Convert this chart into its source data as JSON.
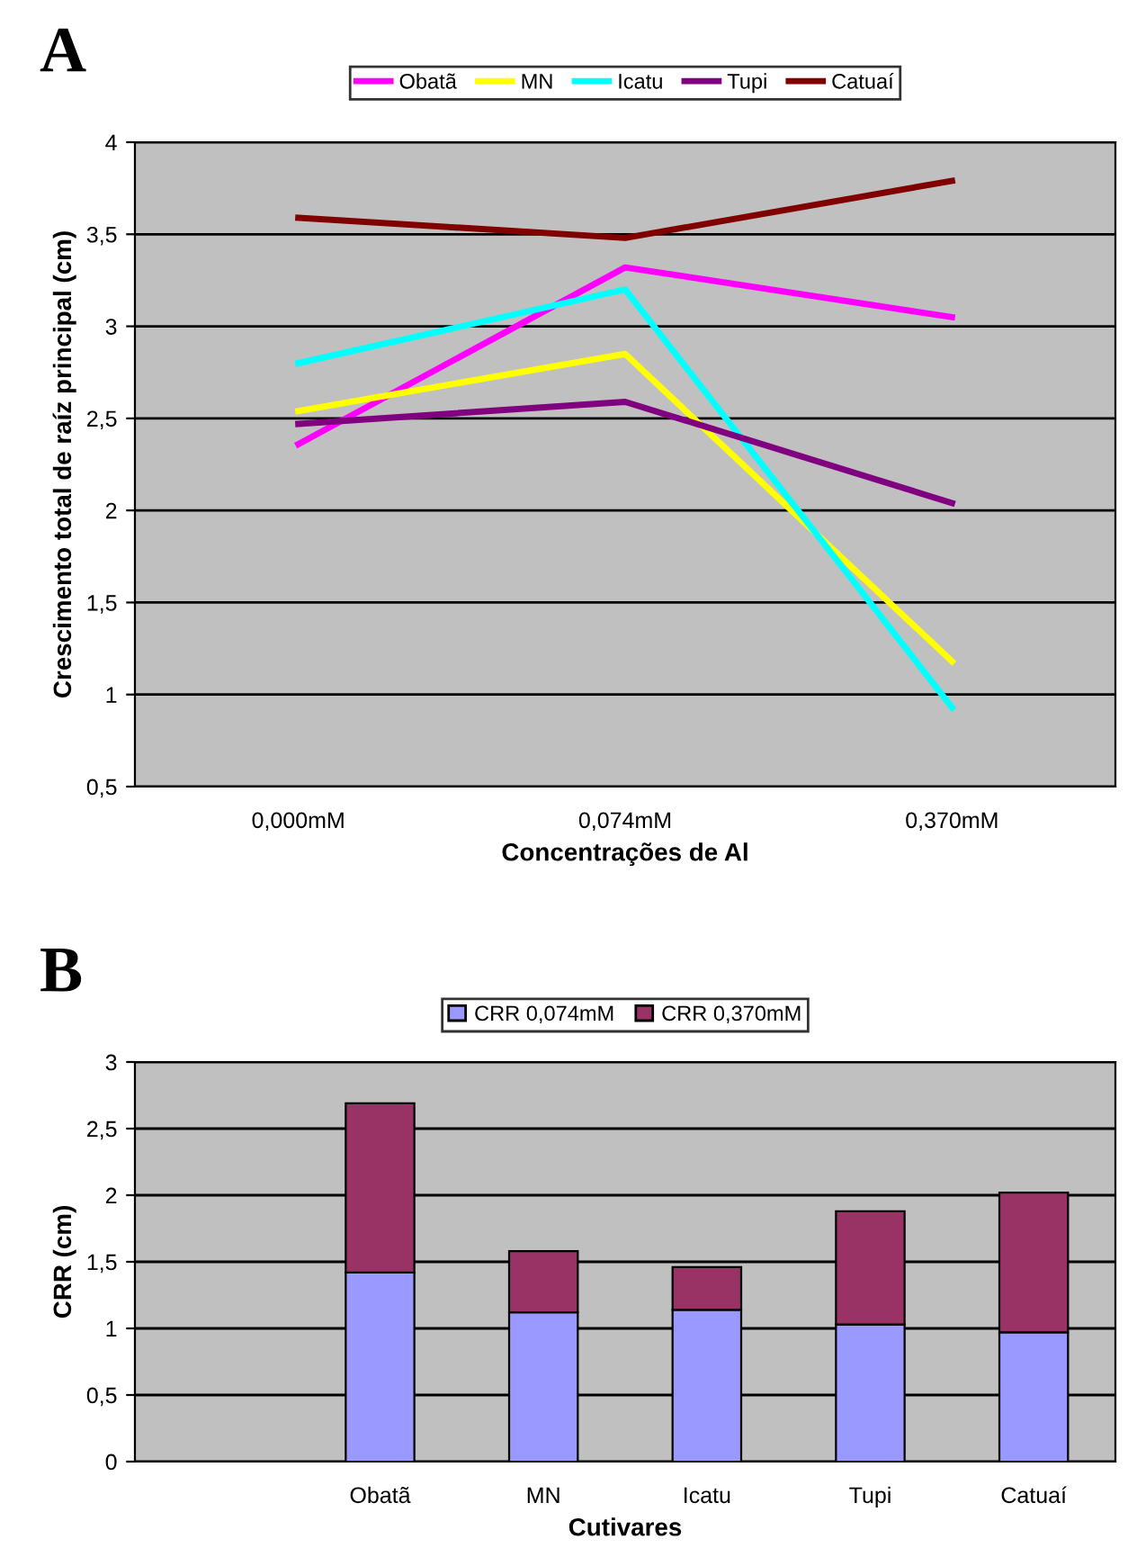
{
  "chart_data": [
    {
      "type": "line",
      "annotations": [
        "A"
      ],
      "xlabel": "Concentrações de Al",
      "ylabel": "Crescimento total de raíz principal (cm)",
      "categories": [
        "0,000mM",
        "0,074mM",
        "0,370mM"
      ],
      "ylim": [
        0.5,
        4
      ],
      "yticks": [
        {
          "value": 0.5,
          "label": "0,5"
        },
        1,
        {
          "value": 1.5,
          "label": "1,5"
        },
        2,
        {
          "value": 2.5,
          "label": "2,5"
        },
        3,
        {
          "value": 3.5,
          "label": "3,5"
        },
        4
      ],
      "grid": "y",
      "legend": "top",
      "marker": "none",
      "line_style": "solid",
      "series": [
        {
          "name": "Obatã",
          "color": "#ff00ff",
          "values": [
            2.36,
            3.32,
            3.05
          ]
        },
        {
          "name": "MN",
          "color": "#ffff00",
          "values": [
            2.54,
            2.85,
            1.18
          ]
        },
        {
          "name": "Icatu",
          "color": "#00ffff",
          "values": [
            2.8,
            3.2,
            0.93
          ]
        },
        {
          "name": "Tupi",
          "color": "#800080",
          "values": [
            2.47,
            2.59,
            2.04
          ]
        },
        {
          "name": "Catuaí",
          "color": "#800000",
          "values": [
            3.59,
            3.48,
            3.79
          ]
        }
      ]
    },
    {
      "type": "bar",
      "stacked": true,
      "annotations": [
        "B"
      ],
      "xlabel": "Cutivares",
      "ylabel": "CRR (cm)",
      "categories": [
        null,
        "Obatã",
        "MN",
        "Icatu",
        "Tupi",
        "Catuaí"
      ],
      "ylim": [
        0,
        3
      ],
      "yticks": [
        0,
        {
          "value": 0.5,
          "label": "0,5"
        },
        1,
        {
          "value": 1.5,
          "label": "1,5"
        },
        2,
        {
          "value": 2.5,
          "label": "2,5"
        },
        3
      ],
      "grid": "y",
      "legend": "top",
      "series": [
        {
          "name": "CRR 0,074mM",
          "color": "#9999ff",
          "values": [
            null,
            1.42,
            1.12,
            1.14,
            1.03,
            0.97
          ]
        },
        {
          "name": "CRR 0,370mM",
          "color": "#993366",
          "values": [
            null,
            1.27,
            0.46,
            0.32,
            0.85,
            1.05
          ]
        }
      ]
    }
  ]
}
